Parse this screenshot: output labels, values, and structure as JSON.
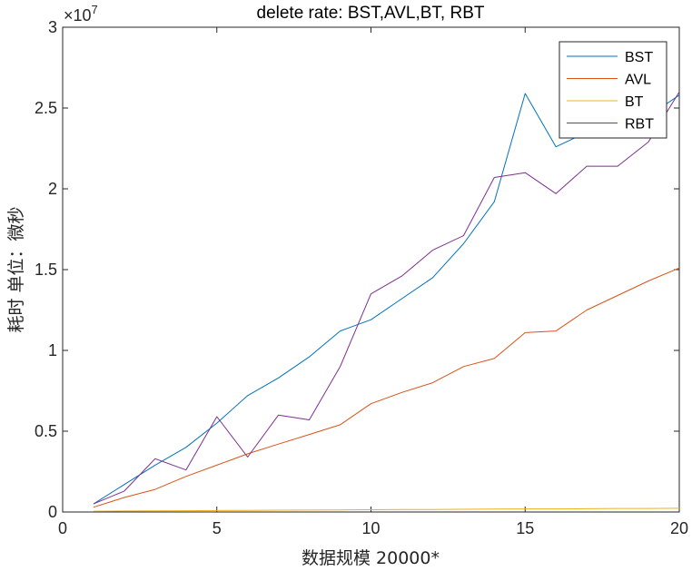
{
  "chart_data": {
    "type": "line",
    "title": "delete rate: BST,AVL,BT, RBT",
    "xlabel": "数据规模 20000*",
    "ylabel": "耗时 单位：微秒",
    "y_exponent_label": "×10",
    "y_exponent_power": "7",
    "xlim": [
      0,
      20
    ],
    "ylim": [
      0,
      3
    ],
    "xticks": [
      0,
      5,
      10,
      15,
      20
    ],
    "yticks": [
      0,
      0.5,
      1,
      1.5,
      2,
      2.5,
      3
    ],
    "ytick_labels": [
      "0",
      "0.5",
      "1",
      "1.5",
      "2",
      "2.5",
      "3"
    ],
    "grid": false,
    "legend_position": "top-right",
    "x": [
      1,
      2,
      3,
      4,
      5,
      6,
      7,
      8,
      9,
      10,
      11,
      12,
      13,
      14,
      15,
      16,
      17,
      18,
      19,
      20
    ],
    "series": [
      {
        "name": "BST",
        "color": "#0072BD",
        "values": [
          0.05,
          0.17,
          0.29,
          0.4,
          0.55,
          0.72,
          0.83,
          0.96,
          1.12,
          1.19,
          1.32,
          1.45,
          1.66,
          1.92,
          2.59,
          2.26,
          2.35,
          2.35,
          2.45,
          2.58
        ]
      },
      {
        "name": "AVL",
        "color": "#D95319",
        "values": [
          0.03,
          0.09,
          0.14,
          0.22,
          0.29,
          0.36,
          0.42,
          0.48,
          0.54,
          0.67,
          0.74,
          0.8,
          0.9,
          0.95,
          1.11,
          1.12,
          1.25,
          1.34,
          1.43,
          1.51
        ]
      },
      {
        "name": "BT",
        "color": "#EDB120",
        "values": [
          0.005,
          0.006,
          0.007,
          0.008,
          0.009,
          0.01,
          0.011,
          0.012,
          0.013,
          0.014,
          0.015,
          0.016,
          0.017,
          0.018,
          0.019,
          0.019,
          0.02,
          0.022,
          0.022,
          0.023
        ]
      },
      {
        "name": "RBT",
        "color": "#7E2F8E",
        "values": [
          0.05,
          0.13,
          0.33,
          0.26,
          0.59,
          0.34,
          0.6,
          0.57,
          0.9,
          1.35,
          1.46,
          1.62,
          1.71,
          2.07,
          2.1,
          1.97,
          2.14,
          2.14,
          2.29,
          2.6
        ]
      }
    ]
  }
}
